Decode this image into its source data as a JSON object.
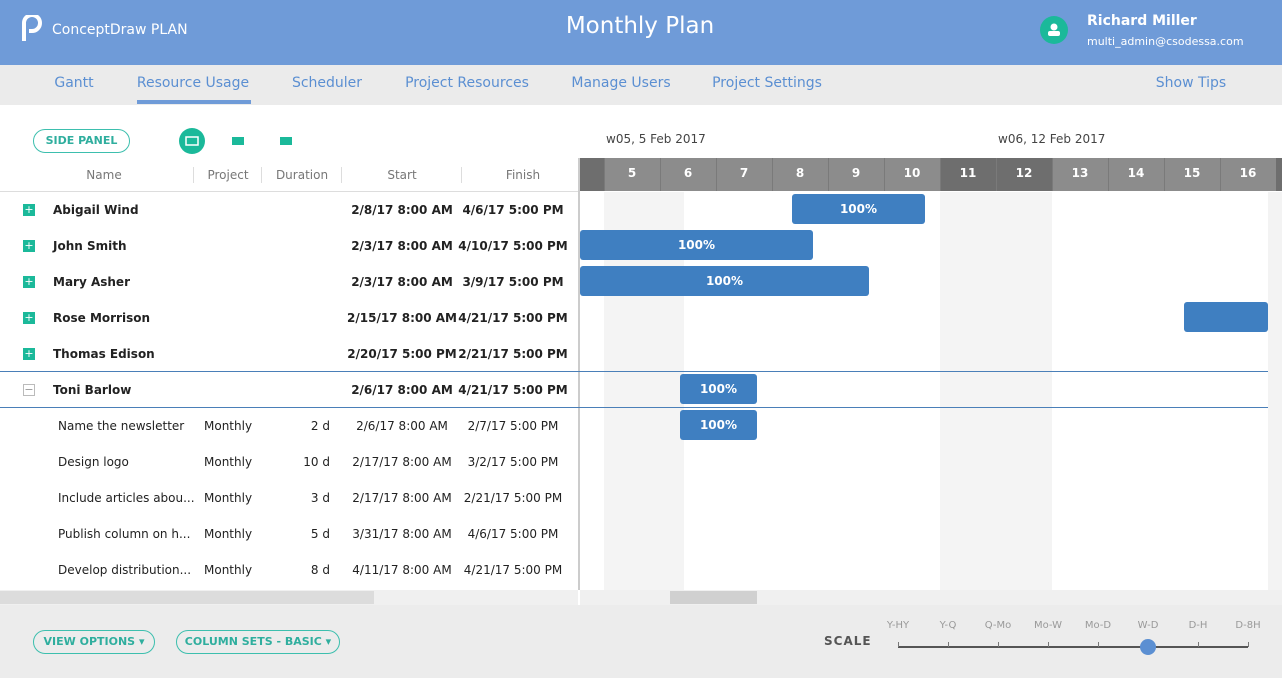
{
  "header": {
    "brand": "ConceptDraw",
    "brand_bold": "PLAN",
    "title": "Monthly Plan",
    "user_name": "Richard Miller",
    "user_email": "multi_admin@csodessa.com"
  },
  "tabs": [
    {
      "label": "Gantt",
      "active": false
    },
    {
      "label": "Resource Usage",
      "active": true
    },
    {
      "label": "Scheduler",
      "active": false
    },
    {
      "label": "Project Resources",
      "active": false
    },
    {
      "label": "Manage Users",
      "active": false
    },
    {
      "label": "Project Settings",
      "active": false
    }
  ],
  "show_tips": "Show Tips",
  "toolbar": {
    "side_panel": "SIDE PANEL"
  },
  "columns": [
    "Name",
    "Project",
    "Duration",
    "Start",
    "Finish"
  ],
  "weeks": [
    "w05, 5 Feb 2017",
    "w06, 12 Feb 2017"
  ],
  "days": [
    {
      "day": 5,
      "weekend": true
    },
    {
      "day": 6,
      "weekend": false
    },
    {
      "day": 7,
      "weekend": false
    },
    {
      "day": 8,
      "weekend": false
    },
    {
      "day": 9,
      "weekend": false
    },
    {
      "day": 10,
      "weekend": false
    },
    {
      "day": 11,
      "weekend": true
    },
    {
      "day": 12,
      "weekend": true
    },
    {
      "day": 13,
      "weekend": false
    },
    {
      "day": 14,
      "weekend": false
    },
    {
      "day": 15,
      "weekend": false
    },
    {
      "day": 16,
      "weekend": false
    }
  ],
  "resources": [
    {
      "name": "Abigail Wind",
      "start": "2/8/17 8:00 AM",
      "finish": "4/6/17 5:00 PM",
      "expanded": false,
      "bar_label": "100%"
    },
    {
      "name": "John Smith",
      "start": "2/3/17 8:00 AM",
      "finish": "4/10/17 5:00 PM",
      "expanded": false,
      "bar_label": "100%"
    },
    {
      "name": "Mary Asher",
      "start": "2/3/17 8:00 AM",
      "finish": "3/9/17 5:00 PM",
      "expanded": false,
      "bar_label": "100%"
    },
    {
      "name": "Rose Morrison",
      "start": "2/15/17 8:00 AM",
      "finish": "4/21/17 5:00 PM",
      "expanded": false
    },
    {
      "name": "Thomas Edison",
      "start": "2/20/17 5:00 PM",
      "finish": "2/21/17 5:00 PM",
      "expanded": false
    },
    {
      "name": "Toni Barlow",
      "start": "2/6/17 8:00 AM",
      "finish": "4/21/17 5:00 PM",
      "expanded": true,
      "bar_label": "100%",
      "tasks": [
        {
          "name": "Name the newsletter",
          "project": "Monthly",
          "duration": "2 d",
          "start": "2/6/17 8:00 AM",
          "finish": "2/7/17 5:00 PM",
          "bar_label": "100%"
        },
        {
          "name": "Design logo",
          "project": "Monthly",
          "duration": "10 d",
          "start": "2/17/17 8:00 AM",
          "finish": "3/2/17 5:00 PM"
        },
        {
          "name": "Include articles abou...",
          "project": "Monthly",
          "duration": "3 d",
          "start": "2/17/17 8:00 AM",
          "finish": "2/21/17 5:00 PM"
        },
        {
          "name": "Publish column on h...",
          "project": "Monthly",
          "duration": "5 d",
          "start": "3/31/17 8:00 AM",
          "finish": "4/6/17 5:00 PM"
        },
        {
          "name": "Develop distribution...",
          "project": "Monthly",
          "duration": "8 d",
          "start": "4/11/17 8:00 AM",
          "finish": "4/21/17 5:00 PM"
        }
      ]
    }
  ],
  "footer": {
    "view_options": "VIEW OPTIONS",
    "column_sets": "COLUMN SETS - BASIC",
    "scale_label": "SCALE",
    "scale_options": [
      {
        "label": "Y-HY",
        "selected": false
      },
      {
        "label": "Y-Q",
        "selected": false
      },
      {
        "label": "Q-Mo",
        "selected": false
      },
      {
        "label": "Mo-W",
        "selected": false
      },
      {
        "label": "Mo-D",
        "selected": false
      },
      {
        "label": "W-D",
        "selected": true
      },
      {
        "label": "D-H",
        "selected": false
      },
      {
        "label": "D-8H",
        "selected": false
      }
    ]
  }
}
